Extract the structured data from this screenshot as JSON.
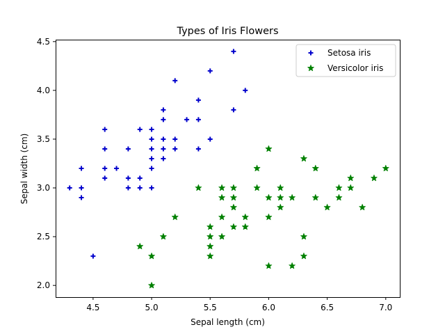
{
  "chart_data": {
    "type": "scatter",
    "title": "Types of Iris Flowers",
    "xlabel": "Sepal length (cm)",
    "ylabel": "Sepal width (cm)",
    "xlim": [
      4.18,
      7.12
    ],
    "ylim": [
      1.88,
      4.52
    ],
    "xticks": [
      "4.5",
      "5.0",
      "5.5",
      "6.0",
      "6.5",
      "7.0"
    ],
    "yticks": [
      "2.0",
      "2.5",
      "3.0",
      "3.5",
      "4.0",
      "4.5"
    ],
    "legend_position": "upper-right",
    "grid": false,
    "series": [
      {
        "name": "Setosa iris",
        "marker": "plus",
        "color": "#0000cc",
        "points": [
          [
            5.7,
            4.4
          ],
          [
            5.5,
            4.2
          ],
          [
            5.2,
            4.1
          ],
          [
            5.8,
            4.0
          ],
          [
            5.4,
            3.9
          ],
          [
            5.1,
            3.8
          ],
          [
            5.7,
            3.8
          ],
          [
            5.1,
            3.7
          ],
          [
            5.3,
            3.7
          ],
          [
            5.4,
            3.7
          ],
          [
            4.6,
            3.6
          ],
          [
            4.9,
            3.6
          ],
          [
            5.0,
            3.6
          ],
          [
            5.0,
            3.5
          ],
          [
            5.1,
            3.5
          ],
          [
            5.2,
            3.5
          ],
          [
            5.5,
            3.5
          ],
          [
            4.6,
            3.4
          ],
          [
            4.8,
            3.4
          ],
          [
            5.0,
            3.4
          ],
          [
            5.1,
            3.4
          ],
          [
            5.2,
            3.4
          ],
          [
            5.4,
            3.4
          ],
          [
            5.0,
            3.3
          ],
          [
            5.1,
            3.3
          ],
          [
            4.4,
            3.2
          ],
          [
            4.6,
            3.2
          ],
          [
            4.7,
            3.2
          ],
          [
            5.0,
            3.2
          ],
          [
            4.6,
            3.1
          ],
          [
            4.8,
            3.1
          ],
          [
            4.9,
            3.1
          ],
          [
            4.3,
            3.0
          ],
          [
            4.4,
            3.0
          ],
          [
            4.8,
            3.0
          ],
          [
            4.9,
            3.0
          ],
          [
            5.0,
            3.0
          ],
          [
            4.4,
            2.9
          ],
          [
            4.5,
            2.3
          ]
        ]
      },
      {
        "name": "Versicolor iris",
        "marker": "star",
        "color": "#008000",
        "points": [
          [
            6.0,
            3.4
          ],
          [
            6.3,
            3.3
          ],
          [
            5.9,
            3.2
          ],
          [
            6.4,
            3.2
          ],
          [
            7.0,
            3.2
          ],
          [
            6.7,
            3.1
          ],
          [
            6.9,
            3.1
          ],
          [
            5.4,
            3.0
          ],
          [
            5.6,
            3.0
          ],
          [
            5.7,
            3.0
          ],
          [
            5.9,
            3.0
          ],
          [
            6.1,
            3.0
          ],
          [
            6.6,
            3.0
          ],
          [
            6.7,
            3.0
          ],
          [
            5.6,
            2.9
          ],
          [
            5.7,
            2.9
          ],
          [
            6.0,
            2.9
          ],
          [
            6.1,
            2.9
          ],
          [
            6.2,
            2.9
          ],
          [
            6.4,
            2.9
          ],
          [
            6.6,
            2.9
          ],
          [
            5.7,
            2.8
          ],
          [
            6.1,
            2.8
          ],
          [
            6.5,
            2.8
          ],
          [
            6.8,
            2.8
          ],
          [
            5.2,
            2.7
          ],
          [
            5.6,
            2.7
          ],
          [
            5.8,
            2.7
          ],
          [
            6.0,
            2.7
          ],
          [
            5.5,
            2.6
          ],
          [
            5.7,
            2.6
          ],
          [
            5.8,
            2.6
          ],
          [
            5.1,
            2.5
          ],
          [
            5.5,
            2.5
          ],
          [
            5.6,
            2.5
          ],
          [
            6.3,
            2.5
          ],
          [
            4.9,
            2.4
          ],
          [
            5.5,
            2.4
          ],
          [
            5.0,
            2.3
          ],
          [
            5.5,
            2.3
          ],
          [
            6.3,
            2.3
          ],
          [
            6.0,
            2.2
          ],
          [
            6.2,
            2.2
          ],
          [
            5.0,
            2.0
          ]
        ]
      }
    ]
  }
}
